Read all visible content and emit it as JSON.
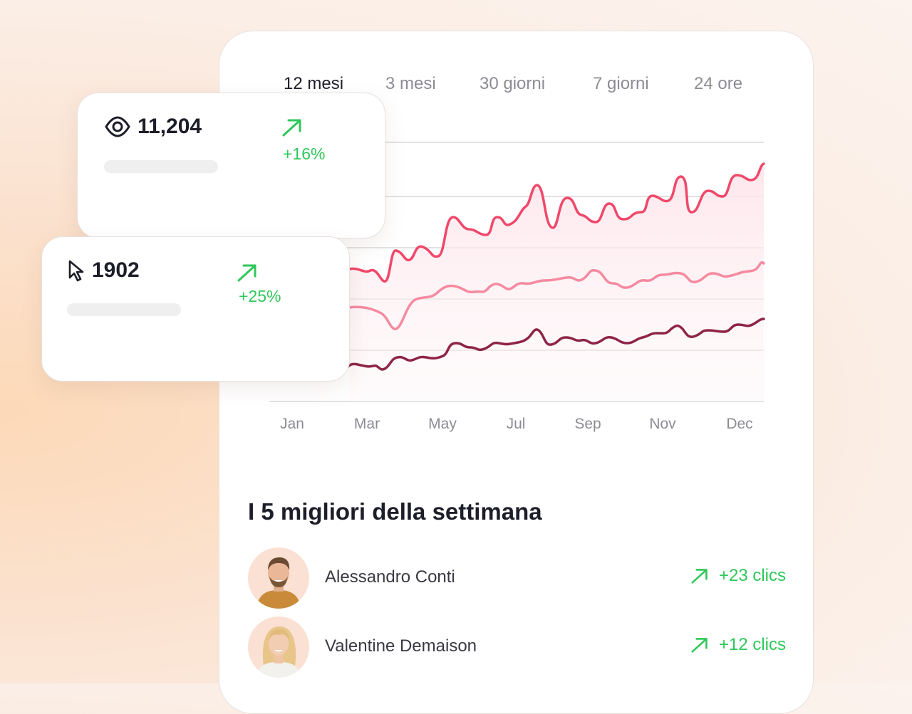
{
  "tabs": [
    {
      "label": "12 mesi",
      "active": true
    },
    {
      "label": "3 mesi",
      "active": false
    },
    {
      "label": "30 giorni",
      "active": false
    },
    {
      "label": "7 giorni",
      "active": false
    },
    {
      "label": "24 ore",
      "active": false
    }
  ],
  "chart_data": {
    "type": "line",
    "x_tick_labels": [
      "Jan",
      "Mar",
      "May",
      "Jul",
      "Sep",
      "Nov",
      "Dec"
    ],
    "grid": true,
    "colors": [
      "#f0486a",
      "#f58aa0",
      "#8e2447"
    ]
  },
  "cards": {
    "views": {
      "icon": "eye-icon",
      "value": "11,204",
      "change": "+16%"
    },
    "clicks": {
      "icon": "cursor-icon",
      "value": "1902",
      "change": "+25%"
    }
  },
  "top": {
    "title": "I 5 migliori della settimana",
    "people": [
      {
        "name": "Alessandro Conti",
        "clicks": "+23 clics"
      },
      {
        "name": "Valentine Demaison",
        "clicks": "+12 clics"
      }
    ]
  },
  "accent_green": "#2fc75a"
}
